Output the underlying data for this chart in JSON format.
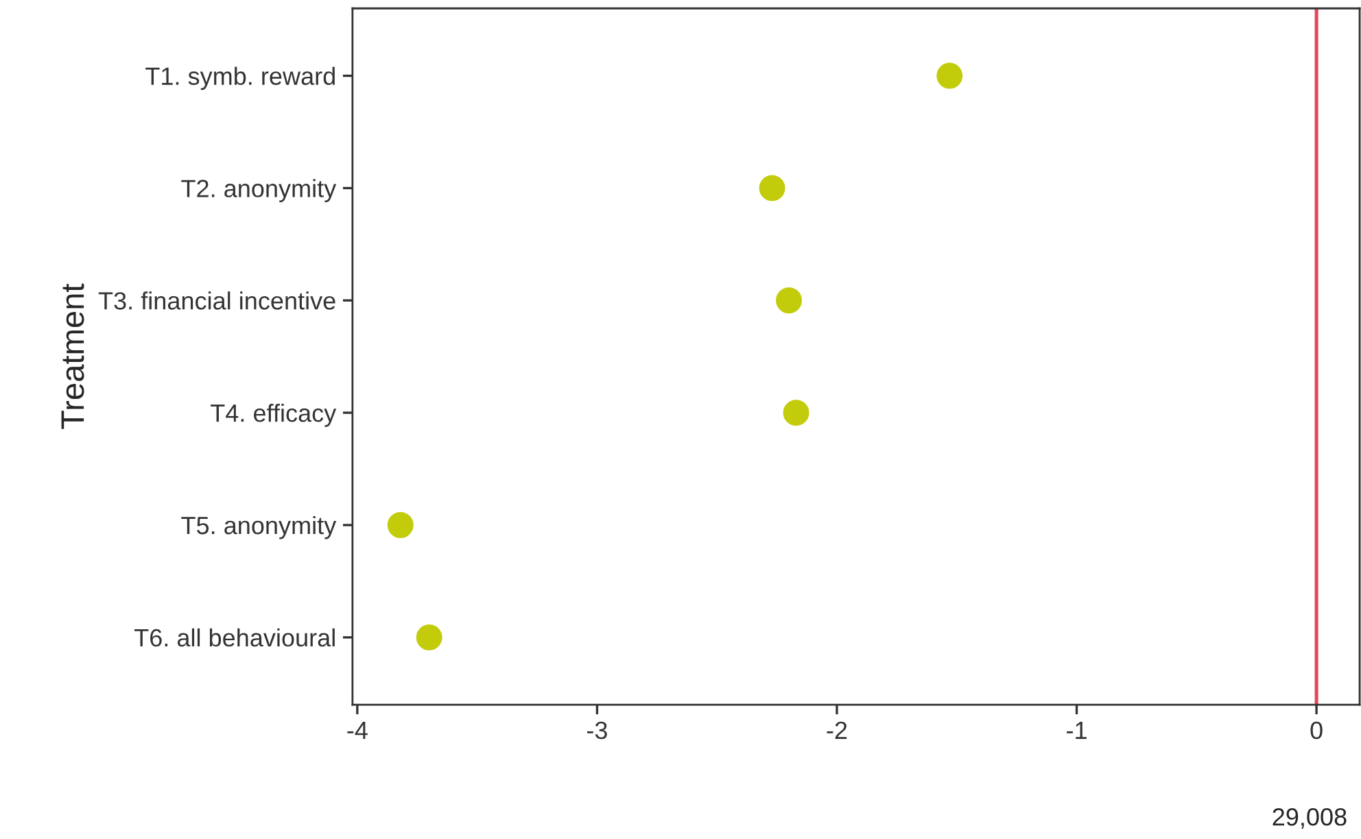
{
  "chart_data": {
    "type": "scatter",
    "orientation": "horizontal",
    "ylabel": "Treatment",
    "categories": [
      "T1. symb. reward",
      "T2. anonymity",
      "T3. financial incentive",
      "T4. efficacy",
      "T5. anonymity",
      "T6. all behavioural"
    ],
    "series": [
      {
        "color": "#c3cc0b",
        "values": [
          -1.53,
          -2.27,
          -2.2,
          -2.17,
          -3.82,
          -3.7
        ]
      }
    ],
    "xlim": [
      -4.02,
      0.18
    ],
    "xticks": [
      -4,
      -3,
      -2,
      -1,
      0
    ],
    "ref_lines": [
      {
        "axis": "x",
        "value": 0,
        "color": "#e8435a"
      }
    ],
    "annotations": [
      "29,008"
    ],
    "grid": false,
    "marker": "circle",
    "legend": false
  }
}
